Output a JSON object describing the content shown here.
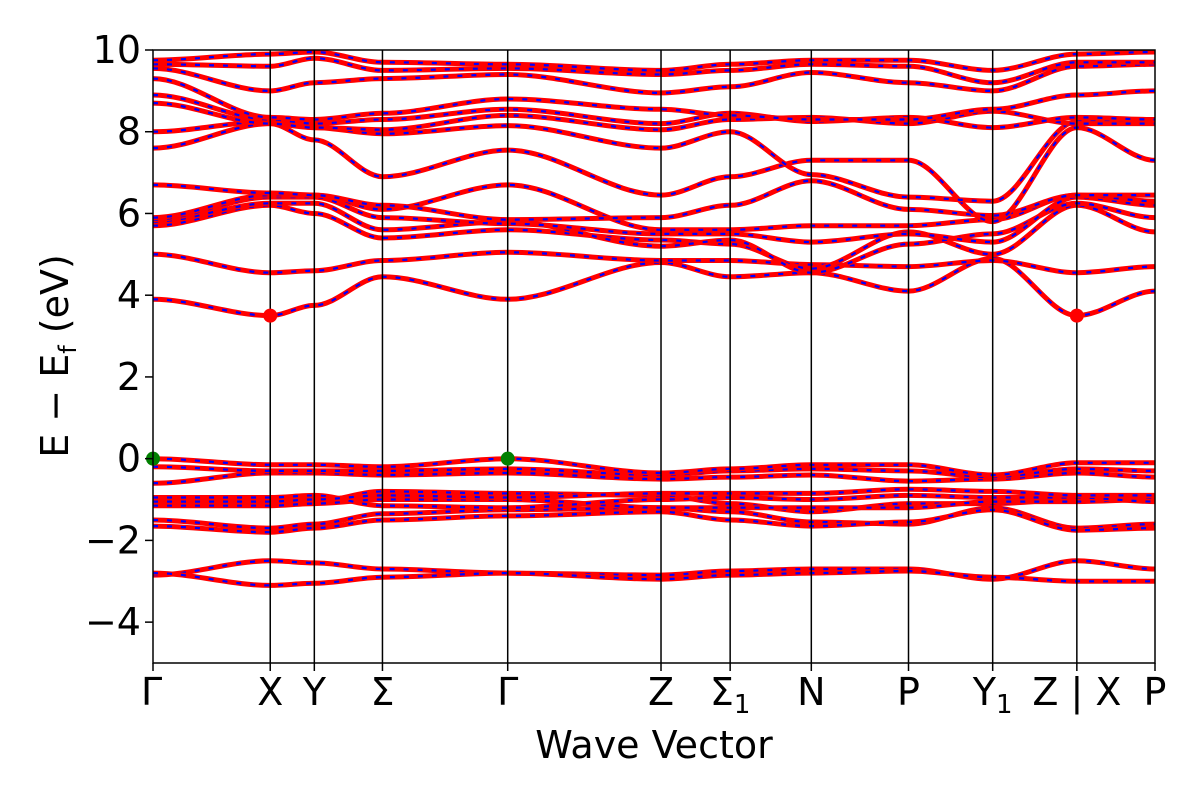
{
  "chart_data": {
    "type": "line",
    "xlabel": "Wave Vector",
    "ylabel_main": "E − E",
    "ylabel_sub": "f",
    "ylabel_unit": " (eV)",
    "ylim": [
      -5,
      10
    ],
    "yticks": [
      -4,
      -2,
      0,
      2,
      4,
      6,
      8,
      10
    ],
    "ytick_labels": [
      "−4",
      "−2",
      "0",
      "2",
      "4",
      "6",
      "8",
      "10"
    ],
    "xlim": [
      0,
      1
    ],
    "kpoints": [
      {
        "label": "Γ",
        "sub": "",
        "x": 0.0
      },
      {
        "label": "X",
        "sub": "",
        "x": 0.117
      },
      {
        "label": "Y",
        "sub": "",
        "x": 0.161
      },
      {
        "label": "Σ",
        "sub": "",
        "x": 0.229
      },
      {
        "label": "Γ",
        "sub": "",
        "x": 0.354
      },
      {
        "label": "Z",
        "sub": "",
        "x": 0.507
      },
      {
        "label": "Σ",
        "sub": "1",
        "x": 0.576
      },
      {
        "label": "N",
        "sub": "",
        "x": 0.657
      },
      {
        "label": "P",
        "sub": "",
        "x": 0.754
      },
      {
        "label": "Y",
        "sub": "1",
        "x": 0.838
      },
      {
        "label": "Z | X",
        "sub": "",
        "x": 0.922
      },
      {
        "label": "P",
        "sub": "",
        "x": 1.0
      }
    ],
    "line_colors": {
      "spin_up": "#ff0000",
      "spin_down": "#0000ff"
    },
    "markers": [
      {
        "name": "CBM",
        "x": 0.117,
        "y": 3.5,
        "color": "#ff0000"
      },
      {
        "name": "CBM",
        "x": 0.922,
        "y": 3.5,
        "color": "#ff0000"
      },
      {
        "name": "VBM",
        "x": 0.0,
        "y": 0.0,
        "color": "#008000"
      },
      {
        "name": "VBM",
        "x": 0.354,
        "y": 0.0,
        "color": "#008000"
      }
    ],
    "bands": [
      [
        -2.85,
        -2.5,
        -2.55,
        -2.7,
        -2.8,
        -2.85,
        -2.75,
        -2.7,
        -2.7,
        -2.95,
        -2.5,
        -2.7
      ],
      [
        -2.8,
        -3.1,
        -3.05,
        -2.9,
        -2.8,
        -2.95,
        -2.85,
        -2.8,
        -2.75,
        -2.9,
        -3.0,
        -3.0
      ],
      [
        -1.5,
        -1.7,
        -1.6,
        -1.35,
        -1.25,
        -1.2,
        -1.3,
        -1.55,
        -1.6,
        -1.2,
        -1.7,
        -1.6
      ],
      [
        -1.65,
        -1.8,
        -1.7,
        -1.5,
        -1.4,
        -1.3,
        -1.5,
        -1.65,
        -1.55,
        -1.25,
        -1.75,
        -1.7
      ],
      [
        -1.0,
        -1.0,
        -1.05,
        -0.8,
        -0.85,
        -0.9,
        -1.1,
        -1.3,
        -1.1,
        -1.1,
        -1.0,
        -0.95
      ],
      [
        -1.15,
        -1.15,
        -1.1,
        -1.0,
        -1.0,
        -1.2,
        -1.2,
        -1.2,
        -1.2,
        -1.05,
        -1.05,
        -1.0
      ],
      [
        -0.95,
        -0.95,
        -0.9,
        -1.15,
        -1.2,
        -1.0,
        -0.95,
        -1.0,
        -0.9,
        -0.95,
        -0.95,
        -1.05
      ],
      [
        -1.05,
        -1.05,
        -1.0,
        -0.9,
        -0.95,
        -0.85,
        -0.85,
        -0.85,
        -0.75,
        -0.8,
        -0.9,
        -0.9
      ],
      [
        -0.6,
        -0.35,
        -0.35,
        -0.4,
        -0.35,
        -0.5,
        -0.45,
        -0.4,
        -0.55,
        -0.5,
        -0.35,
        -0.45
      ],
      [
        -0.2,
        -0.3,
        -0.3,
        -0.3,
        -0.25,
        -0.4,
        -0.3,
        -0.25,
        -0.3,
        -0.45,
        -0.25,
        -0.3
      ],
      [
        0.0,
        -0.15,
        -0.15,
        -0.2,
        0.0,
        -0.35,
        -0.25,
        -0.15,
        -0.15,
        -0.4,
        -0.1,
        -0.1
      ],
      [
        3.9,
        3.5,
        3.75,
        4.45,
        3.9,
        4.8,
        4.45,
        4.55,
        4.1,
        4.9,
        3.5,
        4.1
      ],
      [
        5.0,
        4.55,
        4.6,
        4.85,
        5.05,
        4.85,
        4.85,
        4.75,
        4.7,
        4.85,
        4.55,
        4.7
      ],
      [
        5.7,
        6.2,
        6.0,
        5.4,
        5.6,
        5.35,
        5.25,
        4.65,
        5.55,
        5.0,
        6.2,
        5.55
      ],
      [
        5.8,
        6.25,
        6.25,
        5.6,
        5.8,
        5.2,
        5.35,
        4.55,
        5.25,
        5.5,
        6.25,
        5.9
      ],
      [
        5.85,
        6.4,
        6.4,
        5.9,
        5.75,
        5.5,
        5.5,
        5.3,
        5.5,
        5.3,
        6.4,
        6.2
      ],
      [
        5.9,
        6.45,
        6.45,
        6.1,
        6.7,
        5.6,
        5.6,
        5.7,
        5.7,
        5.85,
        6.45,
        6.3
      ],
      [
        6.7,
        6.5,
        6.45,
        6.2,
        5.85,
        5.9,
        6.2,
        6.8,
        6.1,
        5.95,
        6.45,
        6.45
      ],
      [
        7.6,
        8.2,
        7.8,
        6.9,
        7.55,
        6.45,
        6.9,
        7.3,
        7.3,
        5.8,
        8.1,
        7.3
      ],
      [
        8.0,
        8.25,
        8.1,
        7.95,
        8.15,
        7.6,
        8.0,
        6.95,
        6.4,
        6.3,
        8.25,
        8.25
      ],
      [
        8.7,
        8.2,
        8.1,
        8.05,
        8.4,
        8.05,
        8.3,
        8.35,
        8.2,
        8.5,
        8.2,
        8.2
      ],
      [
        8.9,
        8.3,
        8.2,
        8.3,
        8.55,
        8.2,
        8.45,
        8.25,
        8.35,
        8.1,
        8.35,
        8.3
      ],
      [
        9.3,
        8.35,
        8.3,
        8.45,
        8.8,
        8.55,
        8.4,
        8.3,
        8.3,
        8.55,
        8.9,
        9.0
      ],
      [
        9.55,
        9.0,
        9.2,
        9.3,
        9.4,
        8.95,
        9.1,
        9.45,
        9.2,
        9.0,
        9.6,
        9.65
      ],
      [
        9.65,
        9.6,
        9.8,
        9.5,
        9.55,
        9.4,
        9.5,
        9.65,
        9.6,
        9.2,
        9.7,
        9.7
      ],
      [
        9.75,
        9.9,
        9.95,
        9.7,
        9.65,
        9.5,
        9.65,
        9.75,
        9.75,
        9.5,
        9.9,
        9.95
      ]
    ]
  }
}
